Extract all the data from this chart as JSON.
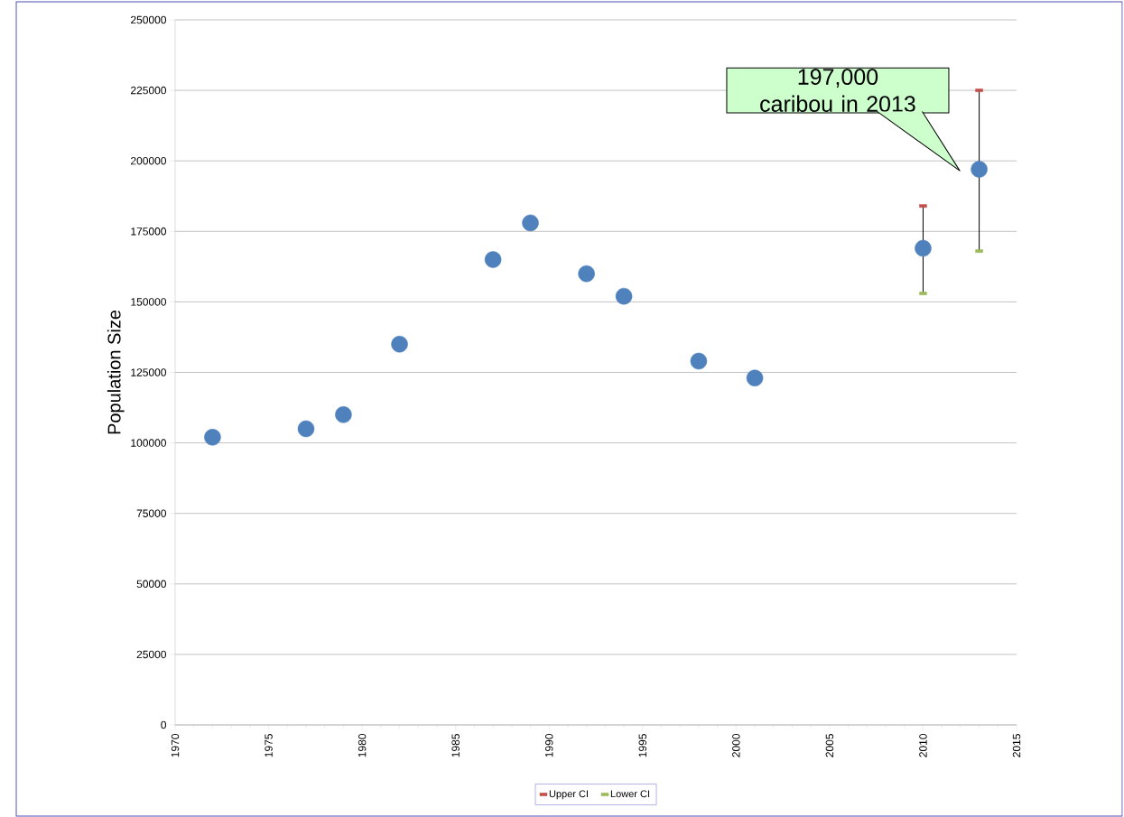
{
  "chart_data": {
    "type": "scatter",
    "ylabel": "Population Size",
    "x": [
      1972,
      1977,
      1979,
      1982,
      1987,
      1989,
      1992,
      1994,
      1998,
      2001,
      2010,
      2013
    ],
    "series": [
      {
        "color": "#4f81bd",
        "marker": "circle",
        "values": [
          102000,
          105000,
          110000,
          135000,
          165000,
          178000,
          160000,
          152000,
          129000,
          123000,
          169000,
          197000
        ],
        "errors": [
          null,
          null,
          null,
          null,
          null,
          null,
          null,
          null,
          null,
          null,
          [
            153000,
            184000
          ],
          [
            168000,
            225000
          ]
        ]
      },
      {
        "name": "Upper CI",
        "color": "#c0504d",
        "marker": "square",
        "values": [
          null,
          null,
          null,
          null,
          null,
          null,
          null,
          null,
          null,
          null,
          184000,
          225000
        ]
      },
      {
        "name": "Lower CI",
        "color": "#9bbb59",
        "marker": "square",
        "values": [
          null,
          null,
          null,
          null,
          null,
          null,
          null,
          null,
          null,
          null,
          153000,
          168000
        ]
      }
    ],
    "xlim": [
      1970,
      2015
    ],
    "xticks": [
      1970,
      1975,
      1980,
      1985,
      1990,
      1995,
      2000,
      2005,
      2010,
      2015
    ],
    "ylim": [
      0,
      250000
    ],
    "yticks": [
      0,
      25000,
      50000,
      75000,
      100000,
      125000,
      150000,
      175000,
      200000,
      225000,
      250000
    ],
    "grid": "y",
    "legend": "bottom",
    "annotations": [
      "197,000 caribou in 2013"
    ]
  }
}
